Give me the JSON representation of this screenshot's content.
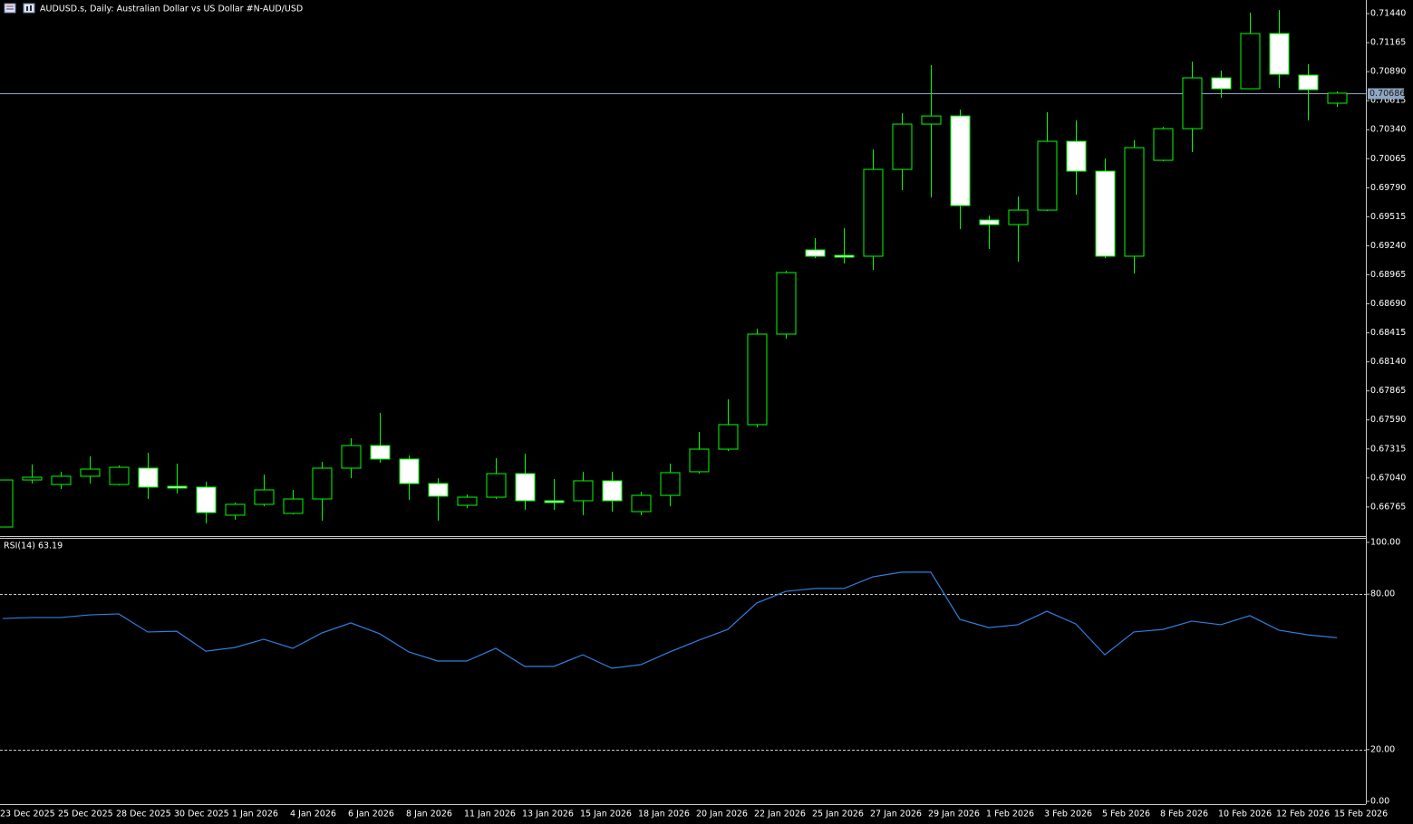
{
  "chart_data": [
    {
      "type": "candlestick",
      "title": "AUDUSD.s, Daily:  Australian Dollar vs US Dollar #N-AUD/USD",
      "categories": [
        "23 Dec 2025",
        null,
        "25 Dec 2025",
        null,
        "28 Dec 2025",
        null,
        "30 Dec 2025",
        null,
        "1 Jan 2026",
        null,
        "4 Jan 2026",
        null,
        "6 Jan 2026",
        null,
        "8 Jan 2026",
        null,
        "11 Jan 2026",
        null,
        "13 Jan 2026",
        null,
        "15 Jan 2026",
        null,
        "18 Jan 2026",
        null,
        "20 Jan 2026",
        null,
        "22 Jan 2026",
        null,
        "25 Jan 2026",
        null,
        "27 Jan 2026",
        null,
        "29 Jan 2026",
        null,
        "1 Feb 2026",
        null,
        "3 Feb 2026",
        null,
        "5 Feb 2026",
        null,
        "8 Feb 2026",
        null,
        "10 Feb 2026",
        null,
        "12 Feb 2026",
        null,
        "15 Feb 2026"
      ],
      "open": [
        0.66575,
        0.67021,
        0.66978,
        0.67056,
        0.66978,
        0.67133,
        0.66961,
        0.66953,
        0.66687,
        0.6679,
        0.66704,
        0.66841,
        0.67133,
        0.67347,
        0.67219,
        0.66987,
        0.66781,
        0.66858,
        0.67081,
        0.66824,
        0.66824,
        0.67013,
        0.66721,
        0.66875,
        0.67099,
        0.67313,
        0.67545,
        0.68403,
        0.69201,
        0.69149,
        0.69141,
        0.69964,
        0.70393,
        0.7047,
        0.69484,
        0.69441,
        0.69578,
        0.7023,
        0.69947,
        0.69141,
        0.7005,
        0.7035,
        0.70831,
        0.70728,
        0.71251,
        0.70857,
        0.70591
      ],
      "high": [
        0.67021,
        0.67167,
        0.67099,
        0.67244,
        0.67159,
        0.67279,
        0.67176,
        0.67004,
        0.66807,
        0.67073,
        0.66927,
        0.67193,
        0.67416,
        0.67656,
        0.67253,
        0.67038,
        0.66884,
        0.67227,
        0.6727,
        0.6703,
        0.67099,
        0.67099,
        0.6691,
        0.67176,
        0.67476,
        0.67785,
        0.68454,
        0.69003,
        0.69312,
        0.69407,
        0.70153,
        0.70496,
        0.70951,
        0.70531,
        0.69527,
        0.69707,
        0.70505,
        0.70428,
        0.70067,
        0.70239,
        0.70368,
        0.70985,
        0.709,
        0.71449,
        0.71474,
        0.7096,
        0.70702
      ],
      "low": [
        0.66575,
        0.66987,
        0.66936,
        0.66987,
        0.6697,
        0.66841,
        0.66893,
        0.66609,
        0.66644,
        0.66772,
        0.66695,
        0.66635,
        0.67038,
        0.67184,
        0.66833,
        0.66635,
        0.66755,
        0.66841,
        0.66738,
        0.66738,
        0.66687,
        0.66721,
        0.66687,
        0.66772,
        0.67081,
        0.67296,
        0.67519,
        0.6836,
        0.69123,
        0.69072,
        0.69012,
        0.69767,
        0.69698,
        0.69398,
        0.69209,
        0.69089,
        0.6957,
        0.69724,
        0.69123,
        0.68978,
        0.70042,
        0.70127,
        0.70642,
        0.70728,
        0.70736,
        0.70428,
        0.70556
      ],
      "close": [
        0.67021,
        0.67047,
        0.67056,
        0.67124,
        0.67141,
        0.66953,
        0.66944,
        0.66712,
        0.6679,
        0.66927,
        0.66841,
        0.67133,
        0.67347,
        0.67219,
        0.66987,
        0.66867,
        0.66858,
        0.67081,
        0.66824,
        0.66807,
        0.67013,
        0.66824,
        0.66875,
        0.6709,
        0.67313,
        0.67545,
        0.68403,
        0.68986,
        0.69141,
        0.69132,
        0.69964,
        0.70393,
        0.7047,
        0.69621,
        0.69441,
        0.69578,
        0.7023,
        0.69947,
        0.69141,
        0.7017,
        0.7035,
        0.70831,
        0.70728,
        0.71251,
        0.70865,
        0.70719,
        0.70686
      ],
      "ylim": [
        0.66498,
        0.71569
      ],
      "yticks": [
        {
          "value": 0.7144,
          "label": "0.71440"
        },
        {
          "value": 0.71165,
          "label": "0.71165"
        },
        {
          "value": 0.7089,
          "label": "0.70890"
        },
        {
          "value": 0.70615,
          "label": "0.70615"
        },
        {
          "value": 0.7034,
          "label": "0.70340"
        },
        {
          "value": 0.70065,
          "label": "0.70065"
        },
        {
          "value": 0.6979,
          "label": "0.69790"
        },
        {
          "value": 0.69515,
          "label": "0.69515"
        },
        {
          "value": 0.6924,
          "label": "0.69240"
        },
        {
          "value": 0.68965,
          "label": "0.68965"
        },
        {
          "value": 0.6869,
          "label": "0.68690"
        },
        {
          "value": 0.68415,
          "label": "0.68415"
        },
        {
          "value": 0.6814,
          "label": "0.68140"
        },
        {
          "value": 0.67865,
          "label": "0.67865"
        },
        {
          "value": 0.6759,
          "label": "0.67590"
        },
        {
          "value": 0.67315,
          "label": "0.67315"
        },
        {
          "value": 0.6704,
          "label": "0.67040"
        },
        {
          "value": 0.66765,
          "label": "0.66765"
        }
      ],
      "bid": 0.70686,
      "bid_color": "#8fa6c4",
      "up_color": "#000000",
      "down_color": "#ffffff",
      "outline_color": "#00ff00"
    },
    {
      "type": "line",
      "title": "RSI(14) 63.19",
      "values": [
        70.6,
        71.0,
        71.0,
        72.0,
        72.4,
        65.4,
        65.7,
        58.0,
        59.4,
        62.6,
        59.1,
        65.0,
        68.9,
        64.7,
        57.7,
        54.2,
        54.2,
        59.1,
        52.1,
        52.1,
        56.6,
        51.4,
        52.8,
        57.7,
        62.2,
        66.4,
        76.6,
        81.1,
        82.2,
        82.2,
        86.7,
        88.5,
        88.5,
        70.3,
        67.1,
        68.2,
        73.4,
        68.5,
        56.6,
        65.4,
        66.4,
        69.6,
        68.2,
        71.7,
        66.1,
        64.3,
        63.19
      ],
      "color": "#2f7fe0",
      "ylim": [
        0,
        100
      ],
      "yticks": [
        {
          "value": 100,
          "label": "100.00"
        },
        {
          "value": 80,
          "label": "80.00"
        },
        {
          "value": 20,
          "label": "20.00"
        },
        {
          "value": 0,
          "label": "0.00"
        }
      ],
      "levels": [
        80,
        20
      ]
    }
  ]
}
